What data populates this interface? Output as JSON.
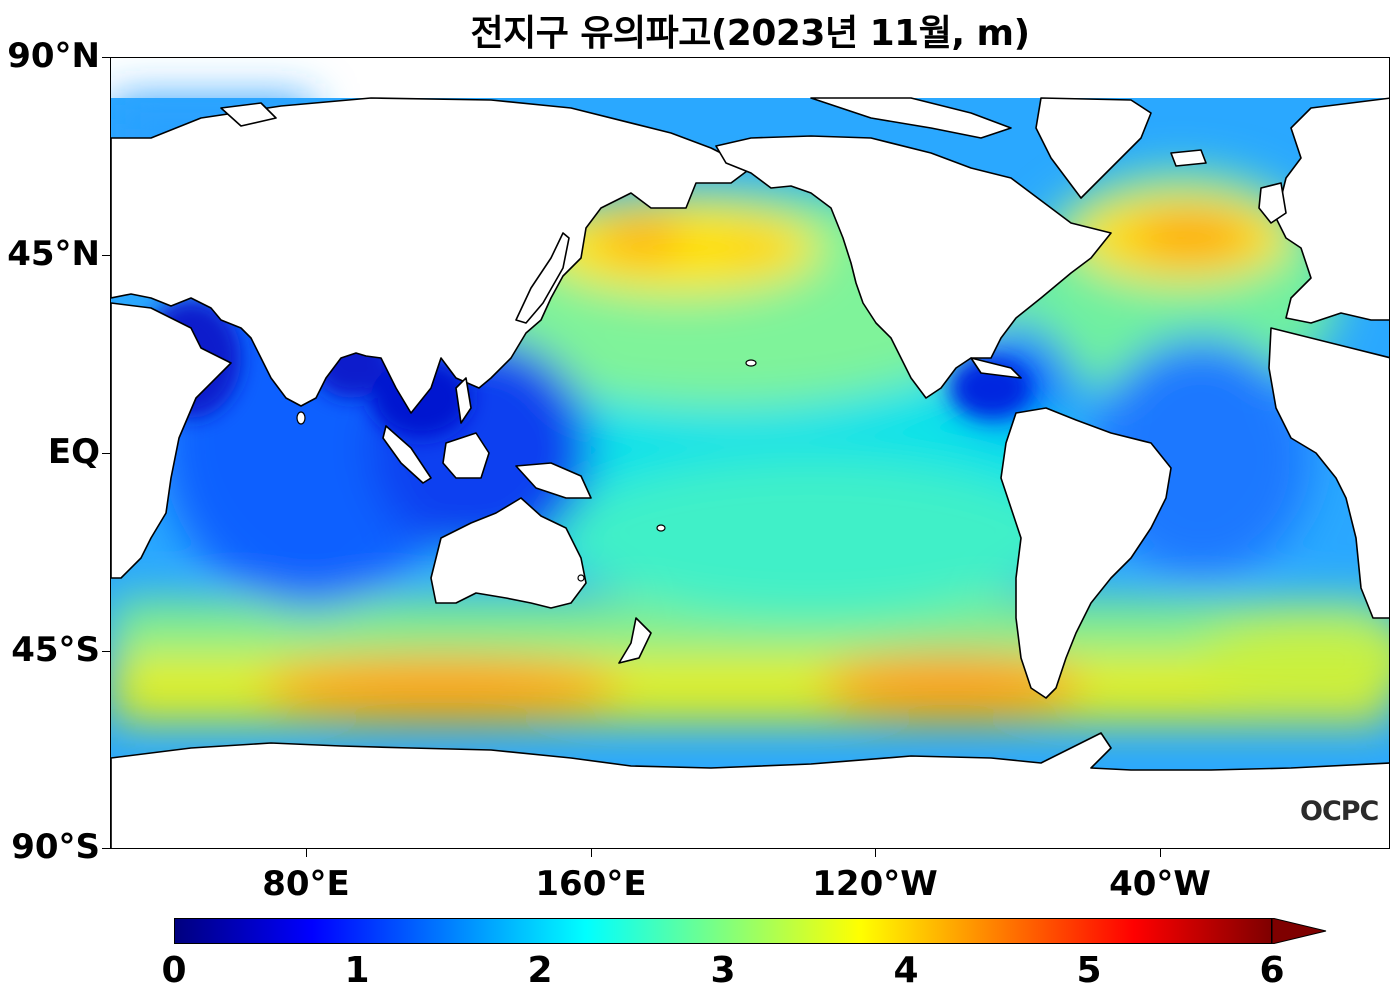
{
  "title": "전지구 유의파고(2023년 11월, m)",
  "y_axis_labels": [
    "90°N",
    "45°N",
    "EQ",
    "45°S",
    "90°S"
  ],
  "x_axis_labels": [
    "80°E",
    "160°E",
    "120°W",
    "40°W"
  ],
  "colorbar": {
    "min": 0,
    "max": 6,
    "tick_labels": [
      "0",
      "1",
      "2",
      "3",
      "4",
      "5",
      "6"
    ],
    "extend": "max",
    "colors": [
      "#00007f",
      "#0000ff",
      "#007fff",
      "#00ffff",
      "#7fff7f",
      "#ffff00",
      "#ff7f00",
      "#ff0000",
      "#7f0000"
    ]
  },
  "logo": "OCPC",
  "colors": {
    "land": "#ffffff",
    "coastline": "#000000"
  }
}
